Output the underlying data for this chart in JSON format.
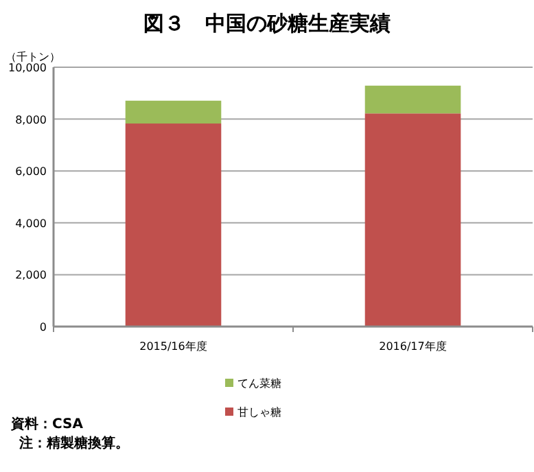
{
  "chart_data": {
    "type": "bar",
    "title": "図３　中国の砂糖生産実績",
    "ylabel": "（千トン）",
    "categories": [
      "2015/16年度",
      "2016/17年度"
    ],
    "stacked": true,
    "series": [
      {
        "name": "甘しゃ糖",
        "color": "#c0504d",
        "values": [
          7830,
          8220
        ]
      },
      {
        "name": "てん菜糖",
        "color": "#9bbb59",
        "values": [
          880,
          1070
        ]
      }
    ],
    "ylim": [
      0,
      10000
    ],
    "yticks": [
      0,
      {
        "value": 2000,
        "label": "2,000"
      },
      {
        "value": 4000,
        "label": "4,000"
      },
      {
        "value": 6000,
        "label": "6,000"
      },
      {
        "value": 8000,
        "label": "8,000"
      },
      {
        "value": 10000,
        "label": "10,000"
      }
    ],
    "grid": "y",
    "legend": "bottom",
    "annotations": [
      "資料：CSA",
      "注：精製糖換算。"
    ]
  }
}
